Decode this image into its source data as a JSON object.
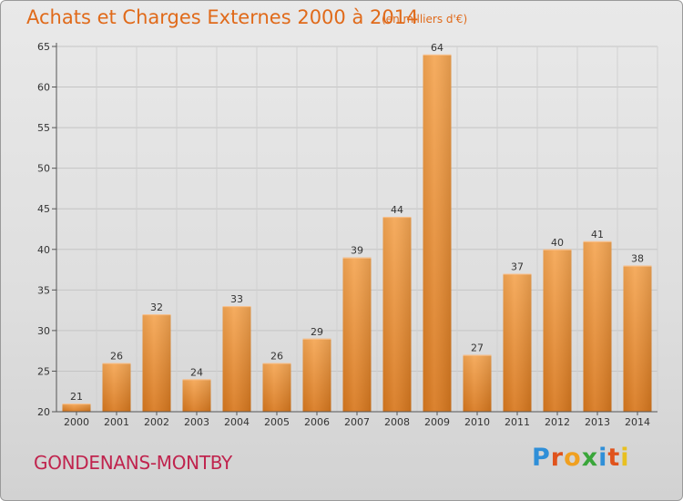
{
  "title": "Achats et Charges Externes 2000 à 2014",
  "subtitle": "(en milliers d'€)",
  "commune": "GONDENANS-MONTBY",
  "brand": {
    "letters": [
      "P",
      "r",
      "o",
      "x",
      "i",
      "t",
      "i"
    ],
    "colors": [
      "#2f8fd8",
      "#e0531c",
      "#f0a020",
      "#3aa63a",
      "#2f8fd8",
      "#e0531c",
      "#e8c020"
    ]
  },
  "chart_data": {
    "type": "bar",
    "categories": [
      "2000",
      "2001",
      "2002",
      "2003",
      "2004",
      "2005",
      "2006",
      "2007",
      "2008",
      "2009",
      "2010",
      "2011",
      "2012",
      "2013",
      "2014"
    ],
    "values": [
      21,
      26,
      32,
      24,
      33,
      26,
      29,
      39,
      44,
      64,
      27,
      37,
      40,
      41,
      38
    ],
    "ylim": [
      20,
      65
    ],
    "yticks": [
      20,
      25,
      30,
      35,
      40,
      45,
      50,
      55,
      60,
      65
    ],
    "grid": true,
    "bar_color": "#f0a04a",
    "bar_color_dark": "#d8781e"
  }
}
